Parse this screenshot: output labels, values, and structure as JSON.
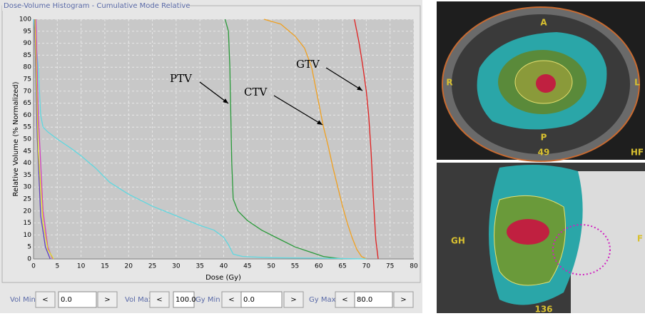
{
  "chart_data": {
    "type": "line",
    "title": "Dose-Volume Histogram - Cumulative Mode Relative",
    "x_label": "Dose (Gy)",
    "y_label": "Relative Volume (% Normalized)",
    "xlim": [
      0,
      80
    ],
    "ylim": [
      0,
      100
    ],
    "xticks": [
      0,
      5,
      10,
      15,
      20,
      25,
      30,
      35,
      40,
      45,
      50,
      55,
      60,
      65,
      70,
      75,
      80
    ],
    "yticks": [
      0,
      5,
      10,
      15,
      20,
      25,
      30,
      35,
      40,
      45,
      50,
      55,
      60,
      65,
      70,
      75,
      80,
      85,
      90,
      95,
      100
    ],
    "grid": true,
    "series": [
      {
        "color": "#e02020",
        "x": [
          67.5,
          68.5,
          69.3,
          70,
          70.5,
          71,
          71.5,
          72,
          72.5
        ],
        "values": [
          100,
          90,
          80,
          70,
          60,
          45,
          25,
          8,
          0
        ]
      },
      {
        "color": "#f0a020",
        "x": [
          48.5,
          52,
          55,
          57,
          58.5,
          59.5,
          60.5,
          61,
          62,
          63,
          64,
          65,
          66,
          67,
          68,
          69,
          70
        ],
        "values": [
          100,
          98,
          93,
          88,
          80,
          70,
          60,
          55,
          47,
          38,
          30,
          22,
          15,
          9,
          4,
          1,
          0
        ]
      },
      {
        "color": "#2a9a3a",
        "x": [
          40.3,
          41,
          41.3,
          41.5,
          41.7,
          42,
          43,
          45,
          48,
          52,
          55,
          58,
          61,
          65
        ],
        "values": [
          100,
          95,
          80,
          60,
          40,
          25,
          20,
          16,
          12,
          8,
          5,
          3,
          1,
          0
        ]
      },
      {
        "color": "#60d8e0",
        "x": [
          0,
          1,
          1.5,
          2,
          3,
          5,
          8,
          10,
          13,
          16,
          20,
          25,
          30,
          35,
          38,
          40,
          41,
          42,
          44,
          50,
          60,
          70
        ],
        "values": [
          100,
          80,
          60,
          55,
          53,
          50,
          46,
          43,
          38,
          32,
          27,
          22,
          18,
          14,
          12,
          9,
          6,
          2,
          1,
          0.5,
          0.3,
          0
        ]
      },
      {
        "color": "#d040c0",
        "x": [
          0.5,
          1,
          2,
          3,
          4
        ],
        "values": [
          100,
          60,
          20,
          5,
          0
        ]
      },
      {
        "color": "#6040c0",
        "x": [
          0.2,
          0.8,
          1.5,
          2.5,
          3.5
        ],
        "values": [
          100,
          50,
          18,
          5,
          0
        ]
      },
      {
        "color": "#e0e020",
        "x": [
          0.3,
          1,
          2,
          3,
          4.2
        ],
        "values": [
          100,
          45,
          15,
          4,
          0
        ]
      }
    ],
    "annotations": [
      {
        "text": "PTV"
      },
      {
        "text": "CTV"
      },
      {
        "text": "GTV"
      }
    ]
  },
  "controls": [
    {
      "label": "Vol Min",
      "dec": "<",
      "value": "0.0",
      "inc": ">"
    },
    {
      "label": "Vol Max",
      "dec": "<",
      "value": "100.0"
    },
    {
      "label": "Gy Min",
      "dec": "<",
      "value": "0.0",
      "inc": ">"
    },
    {
      "label": "Gy Max",
      "dec": "<",
      "value": "80.0",
      "inc": ">"
    }
  ],
  "images": [
    {
      "labels": [
        "A",
        "R",
        "L",
        "P",
        "49",
        "HF"
      ]
    },
    {
      "labels": [
        "GH",
        "F",
        "136"
      ]
    }
  ]
}
